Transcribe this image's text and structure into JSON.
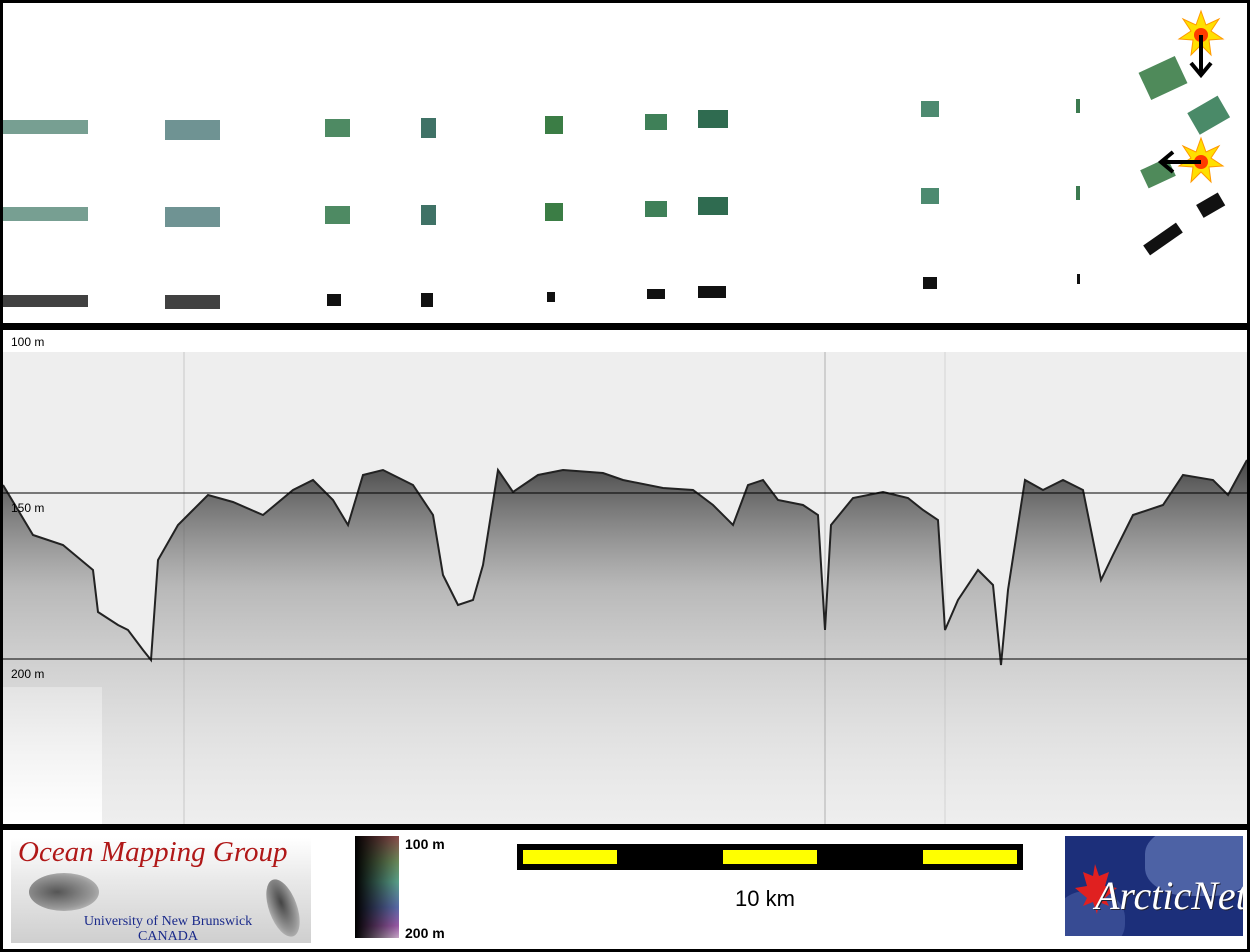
{
  "depth_labels": {
    "top": "100 m",
    "mid": "150 m",
    "bottom": "200 m"
  },
  "logo": {
    "title": "Ocean Mapping Group",
    "university": "University of New Brunswick",
    "country": "CANADA"
  },
  "colorbar": {
    "top_label": "100 m",
    "bottom_label": "200 m"
  },
  "scalebar": {
    "label": "10 km"
  },
  "partner_logo": {
    "text": "ArcticNet"
  },
  "colors": {
    "accent_yellow": "#ffff00",
    "logo_red": "#b01818",
    "logo_blue": "#1a2a8a"
  }
}
